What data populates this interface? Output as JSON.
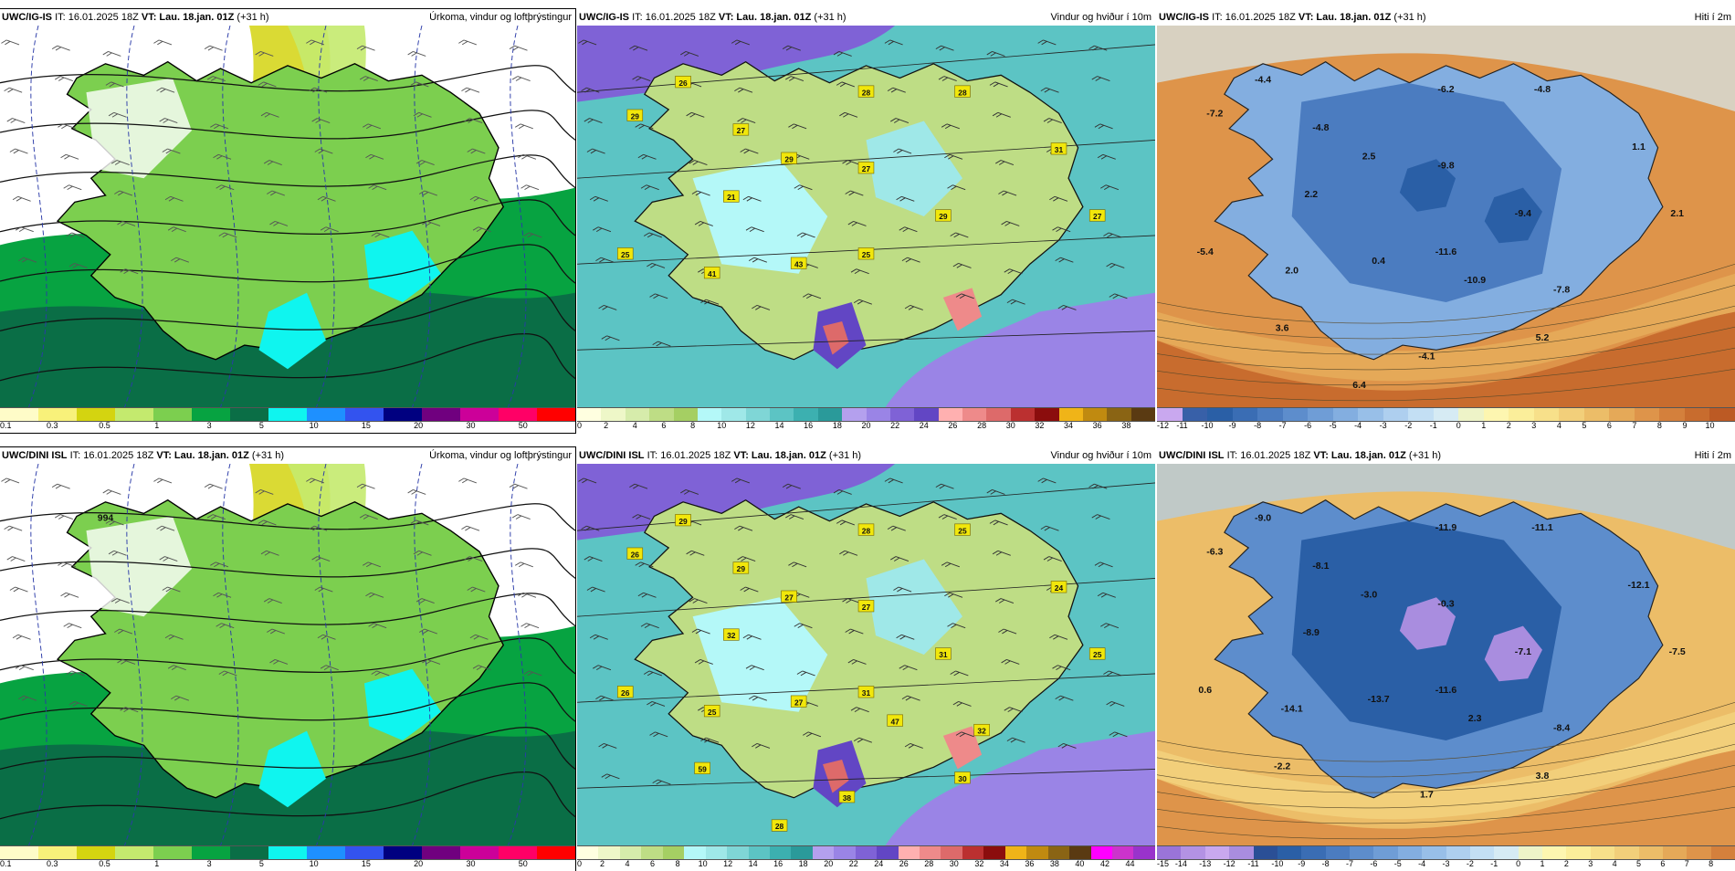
{
  "panels": [
    {
      "id": "p1",
      "model": "UWC/IG-IS",
      "it": "IT: 16.01.2025 18Z",
      "vt_label": "VT:",
      "vt": "Lau. 18.jan. 01Z",
      "lead": "(+31 h)",
      "title": "Úrkoma, vindur og loftþrýstingur",
      "kind": "precip",
      "ticks": [
        "0.1",
        "0.3",
        "0.5",
        "1",
        "3",
        "5",
        "10",
        "15",
        "20",
        "30",
        "50"
      ],
      "colors": [
        "#fefcc8",
        "#f8f17a",
        "#d4d410",
        "#c4ea6e",
        "#7ccf4f",
        "#07a341",
        "#0a6e46",
        "#0ff5ef",
        "#1e90ff",
        "#3353ef",
        "#000080",
        "#70007f",
        "#cc0099",
        "#ff0066",
        "#ff0000"
      ],
      "labels": []
    },
    {
      "id": "p2",
      "model": "UWC/IG-IS",
      "it": "IT: 16.01.2025 18Z",
      "vt_label": "VT:",
      "vt": "Lau. 18.jan. 01Z",
      "lead": "(+31 h)",
      "title": "Vindur og hviður í 10m",
      "kind": "wind",
      "ticks": [
        "0",
        "2",
        "4",
        "6",
        "8",
        "10",
        "12",
        "14",
        "16",
        "18",
        "20",
        "22",
        "24",
        "26",
        "28",
        "30",
        "32",
        "34",
        "36",
        "38"
      ],
      "colors": [
        "#ffffe0",
        "#eef7c8",
        "#d6ecab",
        "#bedd85",
        "#a5cf63",
        "#b4f8f8",
        "#9fe8e8",
        "#7fd6d6",
        "#5cc4c4",
        "#3cb0b0",
        "#2a9a9a",
        "#b4a0ee",
        "#9a84e6",
        "#7f62d6",
        "#6246c4",
        "#ffb0b0",
        "#ee8a8a",
        "#dd6a6a",
        "#bb3030",
        "#8b0d0d",
        "#f0b418",
        "#c08a10",
        "#8a6414",
        "#5a3a12"
      ],
      "labels": [
        "26",
        "29",
        "27",
        "28",
        "28",
        "29",
        "27",
        "31",
        "21",
        "29",
        "27",
        "25",
        "41",
        "43",
        "25"
      ]
    },
    {
      "id": "p3",
      "model": "UWC/IG-IS",
      "it": "IT: 16.01.2025 18Z",
      "vt_label": "VT:",
      "vt": "Lau. 18.jan. 01Z",
      "lead": "(+31 h)",
      "title": "Hiti í 2m",
      "kind": "temp",
      "ticks": [
        "-12",
        "-11",
        "-10",
        "-9",
        "-8",
        "-7",
        "-6",
        "-5",
        "-4",
        "-3",
        "-2",
        "-1",
        "0",
        "1",
        "2",
        "3",
        "4",
        "5",
        "6",
        "7",
        "8",
        "9",
        "10"
      ],
      "colors": [
        "#c9a8ef",
        "#3860a8",
        "#2a5fa6",
        "#3a6db4",
        "#4b7cc0",
        "#5d8dcc",
        "#6f9dd6",
        "#83aee0",
        "#98bfe8",
        "#aecfef",
        "#c3dff4",
        "#d6ebf4",
        "#eef4c8",
        "#fdf6b0",
        "#fbee9a",
        "#f7e08a",
        "#f2cf7a",
        "#ecbd68",
        "#e5a958",
        "#de944a",
        "#d4803c",
        "#c86c2e",
        "#bc5a24"
      ],
      "labels": [
        "-4.4",
        "-7.2",
        "-4.8",
        "-6.2",
        "-4.8",
        "2.5",
        "-9.8",
        "1.1",
        "2.2",
        "-9.4",
        "2.1",
        "-5.4",
        "2.0",
        "0.4",
        "-11.6",
        "-10.9",
        "-7.8",
        "3.6",
        "5.2",
        "-4.1",
        "6.4"
      ]
    },
    {
      "id": "p4",
      "model": "UWC/DINI ISL",
      "it": "IT: 16.01.2025 18Z",
      "vt_label": "VT:",
      "vt": "Lau. 18.jan. 01Z",
      "lead": "(+31 h)",
      "title": "Úrkoma, vindur og loftþrýstingur",
      "kind": "precip",
      "ticks": [
        "0.1",
        "0.3",
        "0.5",
        "1",
        "3",
        "5",
        "10",
        "15",
        "20",
        "30",
        "50"
      ],
      "colors": [
        "#fefcc8",
        "#f8f17a",
        "#d4d410",
        "#c4ea6e",
        "#7ccf4f",
        "#07a341",
        "#0a6e46",
        "#0ff5ef",
        "#1e90ff",
        "#3353ef",
        "#000080",
        "#70007f",
        "#cc0099",
        "#ff0066",
        "#ff0000"
      ],
      "labels": [
        "994"
      ]
    },
    {
      "id": "p5",
      "model": "UWC/DINI ISL",
      "it": "IT: 16.01.2025 18Z",
      "vt_label": "VT:",
      "vt": "Lau. 18.jan. 01Z",
      "lead": "(+31 h)",
      "title": "Vindur og hviður í 10m",
      "kind": "wind",
      "ticks": [
        "0",
        "2",
        "4",
        "6",
        "8",
        "10",
        "12",
        "14",
        "16",
        "18",
        "20",
        "22",
        "24",
        "26",
        "28",
        "30",
        "32",
        "34",
        "36",
        "38",
        "40",
        "42",
        "44"
      ],
      "colors": [
        "#ffffe0",
        "#eef7c8",
        "#d6ecab",
        "#bedd85",
        "#a5cf63",
        "#b4f8f8",
        "#9fe8e8",
        "#7fd6d6",
        "#5cc4c4",
        "#3cb0b0",
        "#2a9a9a",
        "#b4a0ee",
        "#9a84e6",
        "#7f62d6",
        "#6246c4",
        "#ffb0b0",
        "#ee8a8a",
        "#dd6a6a",
        "#bb3030",
        "#8b0d0d",
        "#f0b418",
        "#c08a10",
        "#8a6414",
        "#5a3a12",
        "#ff00ff",
        "#cc33cc",
        "#9933cc"
      ],
      "labels": [
        "29",
        "26",
        "29",
        "28",
        "25",
        "27",
        "27",
        "24",
        "32",
        "31",
        "25",
        "26",
        "25",
        "27",
        "31",
        "47",
        "32",
        "59",
        "30",
        "38",
        "28"
      ]
    },
    {
      "id": "p6",
      "model": "UWC/DINI ISL",
      "it": "IT: 16.01.2025 18Z",
      "vt_label": "VT:",
      "vt": "Lau. 18.jan. 01Z",
      "lead": "(+31 h)",
      "title": "Hiti í 2m",
      "kind": "temp",
      "ticks": [
        "-15",
        "-14",
        "-13",
        "-12",
        "-11",
        "-10",
        "-9",
        "-8",
        "-7",
        "-6",
        "-5",
        "-4",
        "-3",
        "-2",
        "-1",
        "0",
        "1",
        "2",
        "3",
        "4",
        "5",
        "6",
        "7",
        "8"
      ],
      "colors": [
        "#9a74d8",
        "#b392e4",
        "#c9a8ef",
        "#a98ddf",
        "#2a4f96",
        "#2a5fa6",
        "#3a6db4",
        "#4b7cc0",
        "#5d8dcc",
        "#6f9dd6",
        "#83aee0",
        "#98bfe8",
        "#aecfef",
        "#c3dff4",
        "#d6ebf4",
        "#eef4c8",
        "#fdf6b0",
        "#fbee9a",
        "#f7e08a",
        "#f2cf7a",
        "#ecbd68",
        "#e5a958",
        "#de944a",
        "#d4803c"
      ],
      "labels": [
        "-9.0",
        "-6.3",
        "-8.1",
        "-11.9",
        "-11.1",
        "-3.0",
        "-0.3",
        "-12.1",
        "-8.9",
        "-7.1",
        "-7.5",
        "0.6",
        "-14.1",
        "-13.7",
        "-11.6",
        "2.3",
        "-8.4",
        "-2.2",
        "3.8",
        "1.7"
      ]
    }
  ]
}
